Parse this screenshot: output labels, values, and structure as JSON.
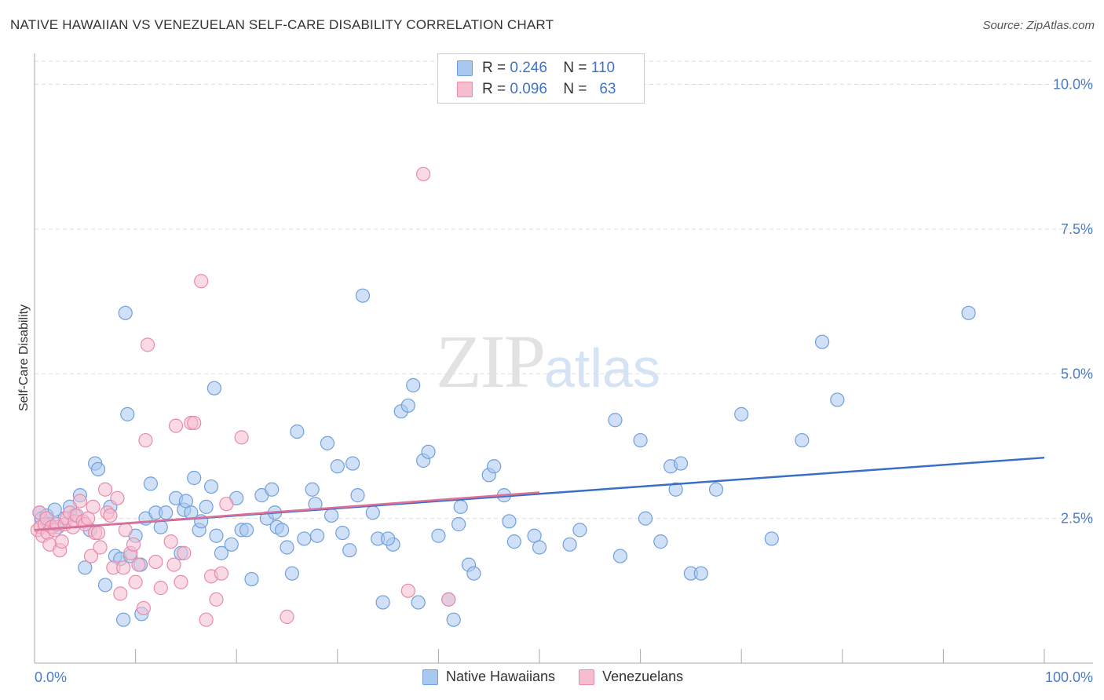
{
  "title": "NATIVE HAWAIIAN VS VENEZUELAN SELF-CARE DISABILITY CORRELATION CHART",
  "source": "Source: ZipAtlas.com",
  "watermark": {
    "zip": "ZIP",
    "atlas": "atlas"
  },
  "legend": {
    "rows": [
      {
        "r_label": "R =",
        "r_value": "0.246",
        "n_label": "N =",
        "n_value": "110"
      },
      {
        "r_label": "R =",
        "r_value": "0.096",
        "n_label": "N =",
        "n_value": "63"
      }
    ]
  },
  "bottom_legend": [
    "Native Hawaiians",
    "Venezuelans"
  ],
  "colors": {
    "blue_fill": "#a9c8f0",
    "blue_stroke": "#6f9fdc",
    "blue_line": "#3a6fc9",
    "pink_fill": "#f6bdd0",
    "pink_stroke": "#e98aa9",
    "pink_line": "#e06f97",
    "tick": "#4a7cc9"
  },
  "chart_data": {
    "type": "scatter",
    "title": "NATIVE HAWAIIAN VS VENEZUELAN SELF-CARE DISABILITY CORRELATION CHART",
    "xlabel": "",
    "ylabel": "Self-Care Disability",
    "xlim": [
      0,
      100
    ],
    "ylim": [
      0,
      10.4
    ],
    "x_tick_labels": [
      "0.0%",
      "100.0%"
    ],
    "y_ticks": [
      2.5,
      5.0,
      7.5,
      10.0
    ],
    "y_tick_labels": [
      "2.5%",
      "5.0%",
      "7.5%",
      "10.0%"
    ],
    "grid": "horizontal dashed",
    "legend_placement": "top-center",
    "series": [
      {
        "name": "Native Hawaiians",
        "r": 0.246,
        "n": 110,
        "trend": {
          "x0": 0,
          "y0": 2.3,
          "x1": 100,
          "y1": 3.55
        },
        "points": [
          [
            0.5,
            2.6
          ],
          [
            0.7,
            2.5
          ],
          [
            1.2,
            2.55
          ],
          [
            1.5,
            2.4
          ],
          [
            2.0,
            2.65
          ],
          [
            2.3,
            2.35
          ],
          [
            3.0,
            2.5
          ],
          [
            3.5,
            2.7
          ],
          [
            4.0,
            2.55
          ],
          [
            4.5,
            2.9
          ],
          [
            5.0,
            1.65
          ],
          [
            5.5,
            2.3
          ],
          [
            6.0,
            3.45
          ],
          [
            6.3,
            3.35
          ],
          [
            7.0,
            1.35
          ],
          [
            7.5,
            2.7
          ],
          [
            8.0,
            1.85
          ],
          [
            8.5,
            1.8
          ],
          [
            8.8,
            0.75
          ],
          [
            9.5,
            1.85
          ],
          [
            9.0,
            6.05
          ],
          [
            9.2,
            4.3
          ],
          [
            10.0,
            2.2
          ],
          [
            10.5,
            1.7
          ],
          [
            10.6,
            0.85
          ],
          [
            11.0,
            2.5
          ],
          [
            11.5,
            3.1
          ],
          [
            12.0,
            2.6
          ],
          [
            12.5,
            2.35
          ],
          [
            13.0,
            2.6
          ],
          [
            14.0,
            2.85
          ],
          [
            14.5,
            1.9
          ],
          [
            14.8,
            2.65
          ],
          [
            15.0,
            2.8
          ],
          [
            15.5,
            2.6
          ],
          [
            15.8,
            3.2
          ],
          [
            16.3,
            2.3
          ],
          [
            16.5,
            2.45
          ],
          [
            17.0,
            2.7
          ],
          [
            17.5,
            3.05
          ],
          [
            17.8,
            4.75
          ],
          [
            18.0,
            2.2
          ],
          [
            18.5,
            1.9
          ],
          [
            19.5,
            2.05
          ],
          [
            20.0,
            2.85
          ],
          [
            20.5,
            2.3
          ],
          [
            21.0,
            2.3
          ],
          [
            21.5,
            1.45
          ],
          [
            22.5,
            2.9
          ],
          [
            23.0,
            2.5
          ],
          [
            23.5,
            3.0
          ],
          [
            23.8,
            2.6
          ],
          [
            24.0,
            2.35
          ],
          [
            24.5,
            2.3
          ],
          [
            25.0,
            2.0
          ],
          [
            25.5,
            1.55
          ],
          [
            26.0,
            4.0
          ],
          [
            26.7,
            2.15
          ],
          [
            27.5,
            3.0
          ],
          [
            27.8,
            2.75
          ],
          [
            28.0,
            2.2
          ],
          [
            29.0,
            3.8
          ],
          [
            29.4,
            2.55
          ],
          [
            30.0,
            3.4
          ],
          [
            30.5,
            2.25
          ],
          [
            31.2,
            1.95
          ],
          [
            31.5,
            3.45
          ],
          [
            32.0,
            2.9
          ],
          [
            32.5,
            6.35
          ],
          [
            33.5,
            2.6
          ],
          [
            34.0,
            2.15
          ],
          [
            34.5,
            1.05
          ],
          [
            35.5,
            2.05
          ],
          [
            35.0,
            2.15
          ],
          [
            36.3,
            4.35
          ],
          [
            37.0,
            4.45
          ],
          [
            37.5,
            4.8
          ],
          [
            38.0,
            1.05
          ],
          [
            38.5,
            3.5
          ],
          [
            39.0,
            3.65
          ],
          [
            40.0,
            2.2
          ],
          [
            41.0,
            1.1
          ],
          [
            41.5,
            0.75
          ],
          [
            42.0,
            2.4
          ],
          [
            42.2,
            2.7
          ],
          [
            43.0,
            1.7
          ],
          [
            43.5,
            1.55
          ],
          [
            45.0,
            3.25
          ],
          [
            45.5,
            3.4
          ],
          [
            46.5,
            2.9
          ],
          [
            47.0,
            2.45
          ],
          [
            47.5,
            2.1
          ],
          [
            49.5,
            2.2
          ],
          [
            50.0,
            2.0
          ],
          [
            53.0,
            2.05
          ],
          [
            54.0,
            2.3
          ],
          [
            57.5,
            4.2
          ],
          [
            58.0,
            1.85
          ],
          [
            60.0,
            3.85
          ],
          [
            60.5,
            2.5
          ],
          [
            62.0,
            2.1
          ],
          [
            63.0,
            3.4
          ],
          [
            63.5,
            3.0
          ],
          [
            64.0,
            3.45
          ],
          [
            65.0,
            1.55
          ],
          [
            66.0,
            1.55
          ],
          [
            67.5,
            3.0
          ],
          [
            70.0,
            4.3
          ],
          [
            73.0,
            2.15
          ],
          [
            76.0,
            3.85
          ],
          [
            78.0,
            5.55
          ],
          [
            79.5,
            4.55
          ],
          [
            92.5,
            6.05
          ]
        ]
      },
      {
        "name": "Venezuelans",
        "r": 0.096,
        "n": 63,
        "trend": {
          "x0": 0,
          "y0": 2.3,
          "x1": 50,
          "y1": 2.95
        },
        "points": [
          [
            0.3,
            2.3
          ],
          [
            0.5,
            2.6
          ],
          [
            0.6,
            2.35
          ],
          [
            0.8,
            2.2
          ],
          [
            1.0,
            2.4
          ],
          [
            1.2,
            2.5
          ],
          [
            1.3,
            2.25
          ],
          [
            1.5,
            2.05
          ],
          [
            1.7,
            2.35
          ],
          [
            2.0,
            2.3
          ],
          [
            2.2,
            2.4
          ],
          [
            2.5,
            1.95
          ],
          [
            2.7,
            2.1
          ],
          [
            3.0,
            2.4
          ],
          [
            3.2,
            2.5
          ],
          [
            3.5,
            2.6
          ],
          [
            3.8,
            2.35
          ],
          [
            4.0,
            2.45
          ],
          [
            4.2,
            2.55
          ],
          [
            4.5,
            2.8
          ],
          [
            4.8,
            2.45
          ],
          [
            5.0,
            2.4
          ],
          [
            5.3,
            2.5
          ],
          [
            5.6,
            1.85
          ],
          [
            5.8,
            2.7
          ],
          [
            6.0,
            2.25
          ],
          [
            6.3,
            2.25
          ],
          [
            6.5,
            2.0
          ],
          [
            7.0,
            3.0
          ],
          [
            7.2,
            2.6
          ],
          [
            7.5,
            2.55
          ],
          [
            7.8,
            1.65
          ],
          [
            8.2,
            2.85
          ],
          [
            8.5,
            1.2
          ],
          [
            8.8,
            1.65
          ],
          [
            9.0,
            2.3
          ],
          [
            9.5,
            1.9
          ],
          [
            9.8,
            2.05
          ],
          [
            10.0,
            1.4
          ],
          [
            10.3,
            1.7
          ],
          [
            11.0,
            3.85
          ],
          [
            11.2,
            5.5
          ],
          [
            10.8,
            0.95
          ],
          [
            12.0,
            1.75
          ],
          [
            12.5,
            1.3
          ],
          [
            13.5,
            2.1
          ],
          [
            13.8,
            1.7
          ],
          [
            14.0,
            4.1
          ],
          [
            14.5,
            1.4
          ],
          [
            14.8,
            1.9
          ],
          [
            15.5,
            4.15
          ],
          [
            15.8,
            4.15
          ],
          [
            16.5,
            6.6
          ],
          [
            17.0,
            0.75
          ],
          [
            17.5,
            1.5
          ],
          [
            18.0,
            1.1
          ],
          [
            18.5,
            1.55
          ],
          [
            19.0,
            2.75
          ],
          [
            20.5,
            3.9
          ],
          [
            25.0,
            0.8
          ],
          [
            37.0,
            1.25
          ],
          [
            38.5,
            8.45
          ],
          [
            41.0,
            1.1
          ]
        ]
      }
    ]
  }
}
